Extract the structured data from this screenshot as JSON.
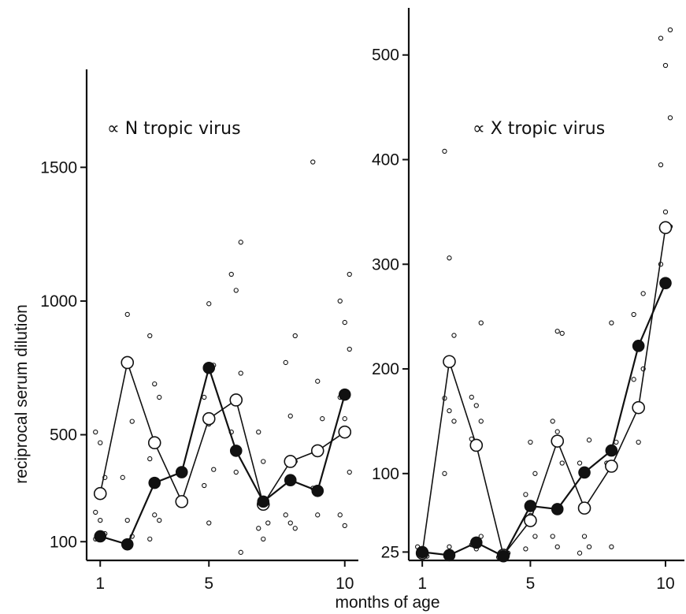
{
  "shared": {
    "xlabel": "months of age",
    "ylabel": "reciprocal serum dilution"
  },
  "chart_data": [
    {
      "type": "line",
      "title": "∝ N tropic virus",
      "xlabel": "months of age",
      "ylabel": "reciprocal serum dilution",
      "xlim": [
        0.5,
        10.5
      ],
      "ylim": [
        30,
        1890
      ],
      "xticks": [
        1,
        5,
        10
      ],
      "xtick_labels": [
        "1",
        "5",
        "10"
      ],
      "yticks": [
        100,
        500,
        1000,
        1500
      ],
      "ytick_labels": [
        "100",
        "500",
        "1000",
        "1500"
      ],
      "grid": false,
      "series": [
        {
          "marker": "open-circle",
          "x": [
            1,
            2,
            3,
            4,
            5,
            6,
            7,
            8,
            9,
            10
          ],
          "y": [
            280,
            770,
            470,
            250,
            560,
            630,
            240,
            400,
            440,
            510
          ]
        },
        {
          "marker": "filled-circle",
          "x": [
            1,
            2,
            3,
            4,
            5,
            6,
            7,
            8,
            9,
            10
          ],
          "y": [
            120,
            90,
            320,
            360,
            750,
            440,
            250,
            330,
            290,
            650
          ]
        }
      ],
      "scatter": [
        [
          1,
          510
        ],
        [
          1,
          470
        ],
        [
          1,
          340
        ],
        [
          1,
          210
        ],
        [
          1,
          180
        ],
        [
          1,
          130
        ],
        [
          1,
          110
        ],
        [
          2,
          950
        ],
        [
          2,
          550
        ],
        [
          2,
          340
        ],
        [
          2,
          180
        ],
        [
          2,
          120
        ],
        [
          3,
          870
        ],
        [
          3,
          690
        ],
        [
          3,
          640
        ],
        [
          3,
          410
        ],
        [
          3,
          200
        ],
        [
          3,
          180
        ],
        [
          3,
          110
        ],
        [
          5,
          990
        ],
        [
          5,
          760
        ],
        [
          5,
          640
        ],
        [
          5,
          540
        ],
        [
          5,
          370
        ],
        [
          5,
          310
        ],
        [
          5,
          170
        ],
        [
          6,
          1220
        ],
        [
          6,
          1100
        ],
        [
          6,
          1040
        ],
        [
          6,
          730
        ],
        [
          6,
          510
        ],
        [
          6,
          360
        ],
        [
          6,
          60
        ],
        [
          7,
          510
        ],
        [
          7,
          400
        ],
        [
          7,
          170
        ],
        [
          7,
          150
        ],
        [
          7,
          110
        ],
        [
          8,
          870
        ],
        [
          8,
          770
        ],
        [
          8,
          570
        ],
        [
          8,
          400
        ],
        [
          8,
          200
        ],
        [
          8,
          170
        ],
        [
          8,
          150
        ],
        [
          9,
          1520
        ],
        [
          9,
          700
        ],
        [
          9,
          560
        ],
        [
          9,
          300
        ],
        [
          9,
          200
        ],
        [
          10,
          1100
        ],
        [
          10,
          1000
        ],
        [
          10,
          920
        ],
        [
          10,
          820
        ],
        [
          10,
          640
        ],
        [
          10,
          560
        ],
        [
          10,
          360
        ],
        [
          10,
          200
        ],
        [
          10,
          160
        ]
      ]
    },
    {
      "type": "line",
      "title": "∝ X tropic virus",
      "xlabel": "months of age",
      "ylabel": "",
      "xlim": [
        0.5,
        10.7
      ],
      "ylim": [
        17,
        545
      ],
      "xticks": [
        1,
        5,
        10
      ],
      "xtick_labels": [
        "1",
        "5",
        "10"
      ],
      "yticks": [
        25,
        100,
        200,
        300,
        400,
        500
      ],
      "ytick_labels": [
        "25",
        "100",
        "200",
        "300",
        "400",
        "500"
      ],
      "grid": false,
      "series": [
        {
          "marker": "open-circle",
          "x": [
            1,
            2,
            3,
            4,
            5,
            6,
            7,
            8,
            9,
            10
          ],
          "y": [
            24,
            207,
            127,
            22,
            55,
            131,
            67,
            107,
            163,
            335
          ]
        },
        {
          "marker": "filled-circle",
          "x": [
            1,
            2,
            3,
            4,
            5,
            6,
            7,
            8,
            9,
            10
          ],
          "y": [
            25,
            22,
            34,
            21,
            69,
            66,
            101,
            122,
            222,
            282
          ]
        }
      ],
      "scatter": [
        [
          1,
          30
        ],
        [
          1,
          24
        ],
        [
          1,
          21
        ],
        [
          2,
          408
        ],
        [
          2,
          306
        ],
        [
          2,
          232
        ],
        [
          2,
          172
        ],
        [
          2,
          160
        ],
        [
          2,
          150
        ],
        [
          2,
          100
        ],
        [
          2,
          30
        ],
        [
          3,
          244
        ],
        [
          3,
          173
        ],
        [
          3,
          165
        ],
        [
          3,
          150
        ],
        [
          3,
          133
        ],
        [
          3,
          130
        ],
        [
          3,
          40
        ],
        [
          3,
          32
        ],
        [
          3,
          28
        ],
        [
          4,
          24
        ],
        [
          4,
          20
        ],
        [
          5,
          130
        ],
        [
          5,
          100
        ],
        [
          5,
          80
        ],
        [
          5,
          60
        ],
        [
          5,
          40
        ],
        [
          5,
          28
        ],
        [
          6,
          236
        ],
        [
          6,
          234
        ],
        [
          6,
          150
        ],
        [
          6,
          140
        ],
        [
          6,
          110
        ],
        [
          6,
          40
        ],
        [
          6,
          30
        ],
        [
          7,
          132
        ],
        [
          7,
          110
        ],
        [
          7,
          40
        ],
        [
          7,
          30
        ],
        [
          7,
          24
        ],
        [
          8,
          244
        ],
        [
          8,
          130
        ],
        [
          8,
          110
        ],
        [
          8,
          30
        ],
        [
          9,
          272
        ],
        [
          9,
          252
        ],
        [
          9,
          225
        ],
        [
          9,
          200
        ],
        [
          9,
          190
        ],
        [
          9,
          130
        ],
        [
          10,
          524
        ],
        [
          10,
          516
        ],
        [
          10,
          490
        ],
        [
          10,
          440
        ],
        [
          10,
          395
        ],
        [
          10,
          350
        ],
        [
          10,
          336
        ],
        [
          10,
          300
        ],
        [
          10,
          282
        ]
      ]
    }
  ]
}
